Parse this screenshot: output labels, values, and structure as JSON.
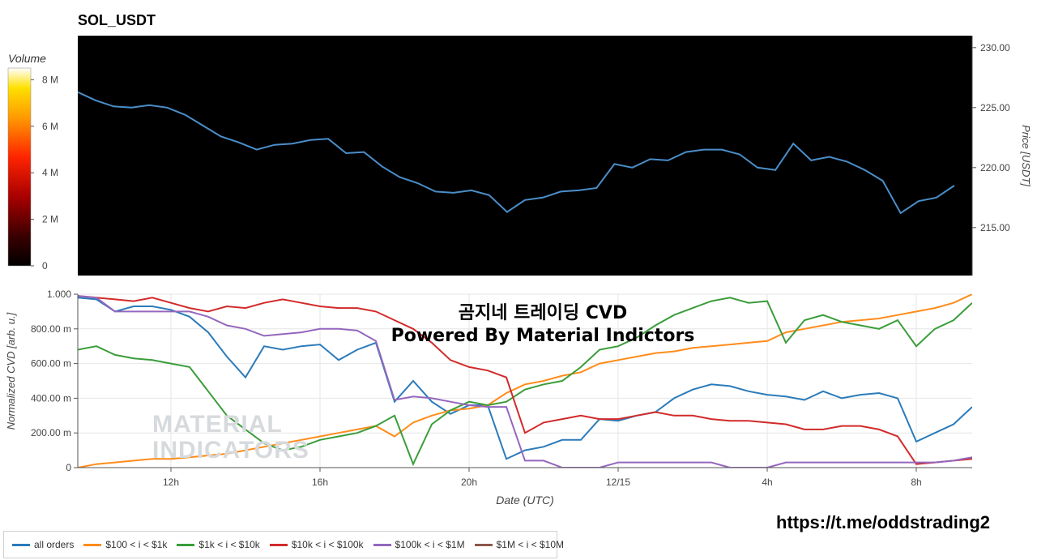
{
  "title": "SOL_USDT",
  "overlay": {
    "title": "곰지네 트레이딩 CVD",
    "subtitle": "Powered By Material Indictors"
  },
  "watermark": {
    "line1": "MATERIAL",
    "line2": "INDICATORS"
  },
  "url": "https://t.me/oddstrading2",
  "colors": {
    "all_orders": "#2b7bba",
    "s100_1k": "#ff8c1a",
    "s1k_10k": "#3a9d3a",
    "s10k_100k": "#d22a2a",
    "s100k_1m": "#9467bd",
    "s1m_10m": "#8c564b",
    "price_line": "#4a8ec9"
  },
  "legend": [
    {
      "label": "all orders",
      "color_key": "all_orders"
    },
    {
      "label": "$100 < i < $1k",
      "color_key": "s100_1k"
    },
    {
      "label": "$1k < i < $10k",
      "color_key": "s1k_10k"
    },
    {
      "label": "$10k < i < $100k",
      "color_key": "s10k_100k"
    },
    {
      "label": "$100k < i < $1M",
      "color_key": "s100k_1m"
    },
    {
      "label": "$1M < i < $10M",
      "color_key": "s1m_10m"
    }
  ],
  "chart_data": [
    {
      "type": "heatmap",
      "title": "SOL_USDT",
      "colorbar": {
        "title": "Volume",
        "ticks": [
          "0",
          "2 M",
          "4 M",
          "6 M",
          "8 M"
        ],
        "range": [
          0,
          8500000
        ]
      },
      "ylabel": "Price [USDT]",
      "ylim": [
        211,
        231
      ],
      "yticks": [
        "215.00",
        "220.00",
        "225.00",
        "230.00"
      ],
      "x_range_hours": [
        9.0,
        9.95
      ],
      "price_series": {
        "name": "",
        "hours": [
          9.0,
          9.5,
          10.0,
          10.5,
          11.0,
          11.5,
          12.0,
          12.5,
          13.0,
          13.5,
          14.0,
          14.5,
          15.0,
          15.5,
          16.0,
          16.5,
          17.0,
          17.5,
          18.0,
          18.5,
          19.0,
          19.5,
          20.0,
          20.5,
          21.0,
          21.5,
          22.0,
          22.5,
          23.0,
          23.5,
          24.0,
          24.5,
          25.0,
          25.5,
          26.0,
          26.5,
          27.0,
          27.5,
          28.0,
          28.5,
          29.0,
          29.5,
          30.0,
          30.5,
          31.0,
          31.5,
          32.0,
          32.5,
          33.0,
          33.5
        ],
        "values": [
          226.3,
          225.6,
          225.1,
          225.0,
          225.2,
          225.0,
          224.4,
          223.5,
          222.6,
          222.1,
          221.5,
          221.9,
          222.0,
          222.3,
          222.4,
          221.2,
          221.3,
          220.1,
          219.2,
          218.7,
          218.0,
          217.9,
          218.1,
          217.7,
          216.3,
          217.3,
          217.5,
          218.0,
          218.1,
          218.3,
          220.3,
          220.0,
          220.7,
          220.6,
          221.3,
          221.5,
          221.5,
          221.1,
          220.0,
          219.8,
          222.0,
          220.6,
          220.9,
          220.5,
          219.8,
          218.9,
          216.2,
          217.2,
          217.5,
          218.5
        ]
      }
    },
    {
      "type": "line",
      "xlabel": "Date (UTC)",
      "ylabel": "Normalized CVD [arb. u.]",
      "ylim": [
        0,
        1.0
      ],
      "yticks": [
        "0",
        "200.00 m",
        "400.00 m",
        "600.00 m",
        "800.00 m",
        "1.000"
      ],
      "xticks": [
        {
          "hour": 12,
          "label": "12h"
        },
        {
          "hour": 16,
          "label": "16h"
        },
        {
          "hour": 20,
          "label": "20h"
        },
        {
          "hour": 24,
          "label": "12/15"
        },
        {
          "hour": 28,
          "label": "4h"
        },
        {
          "hour": 32,
          "label": "8h"
        }
      ],
      "x_range": [
        9.5,
        33.5
      ],
      "x": [
        9.5,
        10.0,
        10.5,
        11.0,
        11.5,
        12.0,
        12.5,
        13.0,
        13.5,
        14.0,
        14.5,
        15.0,
        15.5,
        16.0,
        16.5,
        17.0,
        17.5,
        18.0,
        18.5,
        19.0,
        19.5,
        20.0,
        20.5,
        21.0,
        21.5,
        22.0,
        22.5,
        23.0,
        23.5,
        24.0,
        24.5,
        25.0,
        25.5,
        26.0,
        26.5,
        27.0,
        27.5,
        28.0,
        28.5,
        29.0,
        29.5,
        30.0,
        30.5,
        31.0,
        31.5,
        32.0,
        32.5,
        33.0,
        33.5
      ],
      "series": [
        {
          "name": "all orders",
          "color_key": "all_orders",
          "values": [
            0.98,
            0.97,
            0.9,
            0.93,
            0.93,
            0.91,
            0.87,
            0.78,
            0.64,
            0.52,
            0.7,
            0.68,
            0.7,
            0.71,
            0.62,
            0.68,
            0.72,
            0.38,
            0.5,
            0.38,
            0.31,
            0.36,
            0.36,
            0.05,
            0.1,
            0.12,
            0.16,
            0.16,
            0.28,
            0.27,
            0.3,
            0.32,
            0.4,
            0.45,
            0.48,
            0.47,
            0.44,
            0.42,
            0.41,
            0.39,
            0.44,
            0.4,
            0.42,
            0.43,
            0.4,
            0.15,
            0.2,
            0.25,
            0.35
          ]
        },
        {
          "name": "$100 < i < $1k",
          "color_key": "s100_1k",
          "values": [
            0.0,
            0.02,
            0.03,
            0.04,
            0.05,
            0.05,
            0.06,
            0.07,
            0.08,
            0.1,
            0.12,
            0.14,
            0.16,
            0.18,
            0.2,
            0.22,
            0.24,
            0.18,
            0.26,
            0.3,
            0.33,
            0.34,
            0.36,
            0.43,
            0.48,
            0.5,
            0.53,
            0.55,
            0.6,
            0.62,
            0.64,
            0.66,
            0.67,
            0.69,
            0.7,
            0.71,
            0.72,
            0.73,
            0.78,
            0.8,
            0.82,
            0.84,
            0.85,
            0.86,
            0.88,
            0.9,
            0.92,
            0.95,
            1.0
          ]
        },
        {
          "name": "$1k < i < $10k",
          "color_key": "s1k_10k",
          "values": [
            0.68,
            0.7,
            0.65,
            0.63,
            0.62,
            0.6,
            0.58,
            0.44,
            0.3,
            0.22,
            0.14,
            0.1,
            0.12,
            0.16,
            0.18,
            0.2,
            0.24,
            0.3,
            0.02,
            0.25,
            0.33,
            0.38,
            0.36,
            0.38,
            0.45,
            0.48,
            0.5,
            0.58,
            0.68,
            0.7,
            0.75,
            0.82,
            0.88,
            0.92,
            0.96,
            0.98,
            0.95,
            0.96,
            0.72,
            0.85,
            0.88,
            0.84,
            0.82,
            0.8,
            0.85,
            0.7,
            0.8,
            0.85,
            0.95
          ]
        },
        {
          "name": "$10k < i < $100k",
          "color_key": "s10k_100k",
          "values": [
            0.99,
            0.98,
            0.97,
            0.96,
            0.98,
            0.95,
            0.92,
            0.9,
            0.93,
            0.92,
            0.95,
            0.97,
            0.95,
            0.93,
            0.92,
            0.92,
            0.9,
            0.85,
            0.8,
            0.72,
            0.62,
            0.58,
            0.56,
            0.52,
            0.2,
            0.26,
            0.28,
            0.3,
            0.28,
            0.28,
            0.3,
            0.32,
            0.3,
            0.3,
            0.28,
            0.27,
            0.27,
            0.26,
            0.25,
            0.22,
            0.22,
            0.24,
            0.24,
            0.22,
            0.18,
            0.02,
            0.03,
            0.04,
            0.05
          ]
        },
        {
          "name": "$100k < i < $1M",
          "color_key": "s100k_1m",
          "values": [
            0.99,
            0.98,
            0.9,
            0.9,
            0.9,
            0.9,
            0.9,
            0.87,
            0.82,
            0.8,
            0.76,
            0.77,
            0.78,
            0.8,
            0.8,
            0.79,
            0.73,
            0.39,
            0.41,
            0.4,
            0.38,
            0.36,
            0.35,
            0.35,
            0.04,
            0.04,
            0.0,
            0.0,
            0.0,
            0.03,
            0.03,
            0.03,
            0.03,
            0.03,
            0.03,
            0.0,
            0.0,
            0.0,
            0.03,
            0.03,
            0.03,
            0.03,
            0.03,
            0.03,
            0.03,
            0.03,
            0.03,
            0.04,
            0.06
          ]
        }
      ]
    }
  ]
}
